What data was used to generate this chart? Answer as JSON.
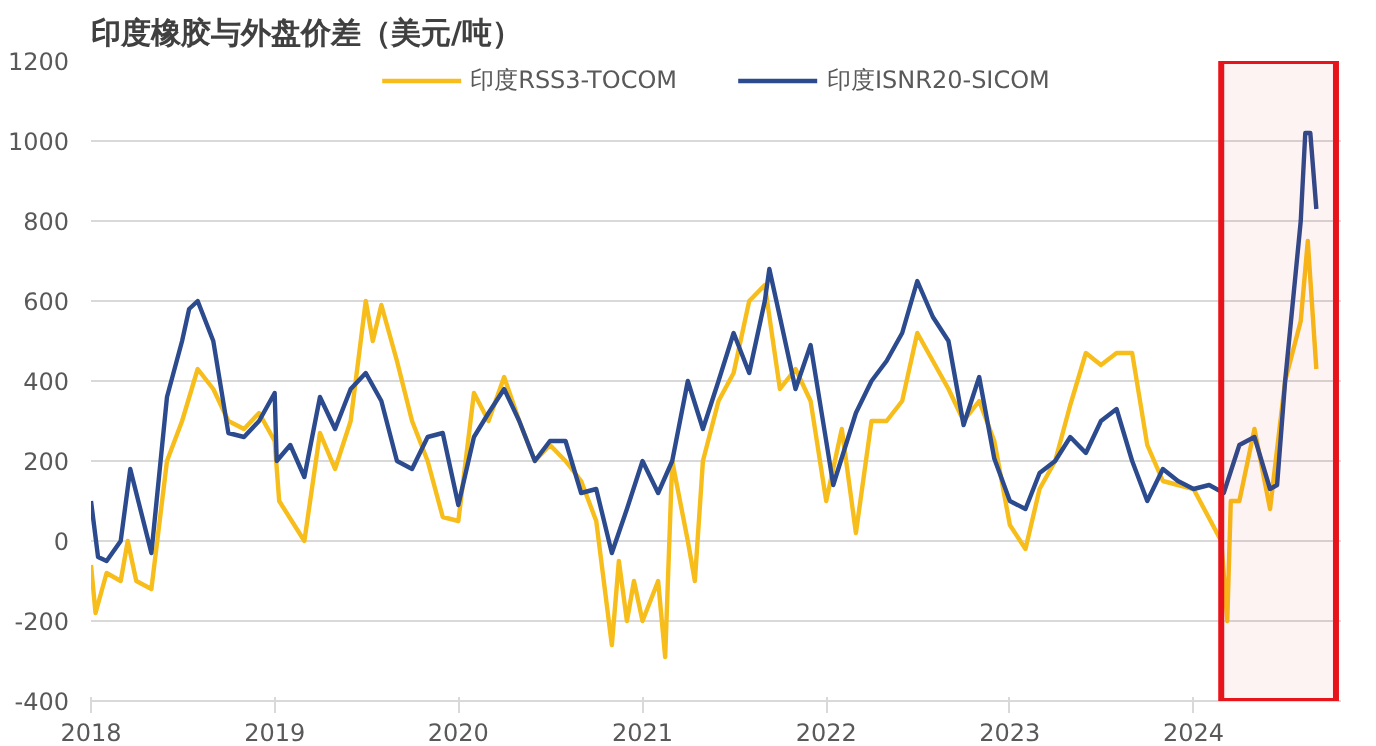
{
  "chart_data": {
    "type": "line",
    "title": "印度橡胶与外盘价差（美元/吨）",
    "xlim": [
      "2018-01-01",
      "2024-10-20"
    ],
    "xticks": [
      {
        "value": "2018-01-01",
        "label": "2018"
      },
      {
        "value": "2019-01-01",
        "label": "2019"
      },
      {
        "value": "2020-01-01",
        "label": "2020"
      },
      {
        "value": "2021-01-01",
        "label": "2021"
      },
      {
        "value": "2022-01-01",
        "label": "2022"
      },
      {
        "value": "2023-01-01",
        "label": "2023"
      },
      {
        "value": "2024-01-01",
        "label": "2024"
      }
    ],
    "ylim": [
      -400,
      1200
    ],
    "yticks": [
      -400,
      -200,
      0,
      200,
      400,
      600,
      800,
      1000,
      1200
    ],
    "grid": "y",
    "legend": "top",
    "line_style": "solid",
    "marker": "none",
    "bands": [
      {
        "axis": "x",
        "from": "2024-02-25",
        "to": "2024-10-10",
        "color": "#e8141c"
      }
    ],
    "series": [
      {
        "name": "印度RSS3-TOCOM",
        "color": "#f7bd1a",
        "x": [
          "2018-01-01",
          "2018-01-10",
          "2018-02-01",
          "2018-03-01",
          "2018-03-15",
          "2018-04-01",
          "2018-05-01",
          "2018-06-01",
          "2018-07-01",
          "2018-08-01",
          "2018-09-01",
          "2018-10-01",
          "2018-11-01",
          "2018-12-01",
          "2019-01-01",
          "2019-01-10",
          "2019-03-01",
          "2019-04-01",
          "2019-05-01",
          "2019-06-01",
          "2019-07-01",
          "2019-07-15",
          "2019-08-01",
          "2019-09-01",
          "2019-10-01",
          "2019-11-01",
          "2019-12-01",
          "2020-01-01",
          "2020-02-01",
          "2020-03-01",
          "2020-04-01",
          "2020-05-01",
          "2020-06-01",
          "2020-07-01",
          "2020-08-01",
          "2020-09-01",
          "2020-10-01",
          "2020-11-01",
          "2020-11-15",
          "2020-12-01",
          "2020-12-15",
          "2021-01-01",
          "2021-02-01",
          "2021-02-15",
          "2021-03-01",
          "2021-04-01",
          "2021-04-15",
          "2021-05-01",
          "2021-06-01",
          "2021-07-01",
          "2021-08-01",
          "2021-09-01",
          "2021-10-01",
          "2021-11-01",
          "2021-12-01",
          "2022-01-01",
          "2022-02-01",
          "2022-03-01",
          "2022-04-01",
          "2022-05-01",
          "2022-06-01",
          "2022-07-01",
          "2022-08-01",
          "2022-09-01",
          "2022-10-01",
          "2022-11-01",
          "2022-12-01",
          "2023-01-01",
          "2023-02-01",
          "2023-03-01",
          "2023-04-01",
          "2023-05-01",
          "2023-06-01",
          "2023-07-01",
          "2023-08-01",
          "2023-09-01",
          "2023-10-01",
          "2023-11-01",
          "2023-12-01",
          "2024-01-01",
          "2024-02-25",
          "2024-03-08",
          "2024-03-15",
          "2024-04-01",
          "2024-05-01",
          "2024-06-01",
          "2024-07-01",
          "2024-08-01",
          "2024-08-15",
          "2024-09-01"
        ],
        "values": [
          -60,
          -180,
          -80,
          -100,
          0,
          -100,
          -120,
          200,
          300,
          430,
          380,
          300,
          280,
          320,
          250,
          100,
          0,
          270,
          180,
          300,
          600,
          500,
          590,
          450,
          300,
          200,
          60,
          50,
          370,
          300,
          410,
          300,
          200,
          240,
          200,
          150,
          50,
          -260,
          -50,
          -200,
          -100,
          -200,
          -100,
          -290,
          200,
          0,
          -100,
          200,
          350,
          420,
          600,
          640,
          380,
          430,
          350,
          100,
          280,
          20,
          300,
          300,
          350,
          520,
          450,
          380,
          300,
          350,
          250,
          40,
          -20,
          130,
          200,
          340,
          470,
          440,
          470,
          470,
          240,
          150,
          140,
          130,
          0,
          -200,
          100,
          100,
          280,
          80,
          400,
          550,
          750,
          430
        ]
      },
      {
        "name": "印度ISNR20-SICOM",
        "color": "#2b4b8e",
        "x": [
          "2018-01-01",
          "2018-01-15",
          "2018-02-01",
          "2018-03-01",
          "2018-03-20",
          "2018-05-01",
          "2018-06-01",
          "2018-07-01",
          "2018-07-15",
          "2018-08-01",
          "2018-09-01",
          "2018-10-01",
          "2018-11-01",
          "2018-12-01",
          "2019-01-01",
          "2019-01-05",
          "2019-02-01",
          "2019-03-01",
          "2019-04-01",
          "2019-05-01",
          "2019-06-01",
          "2019-07-01",
          "2019-08-01",
          "2019-09-01",
          "2019-10-01",
          "2019-11-01",
          "2019-12-01",
          "2020-01-01",
          "2020-02-01",
          "2020-03-01",
          "2020-04-01",
          "2020-05-01",
          "2020-06-01",
          "2020-07-01",
          "2020-08-01",
          "2020-09-01",
          "2020-10-01",
          "2020-11-01",
          "2020-12-01",
          "2021-01-01",
          "2021-02-01",
          "2021-03-01",
          "2021-04-01",
          "2021-05-01",
          "2021-06-01",
          "2021-07-01",
          "2021-08-01",
          "2021-09-01",
          "2021-09-10",
          "2021-10-01",
          "2021-11-01",
          "2021-12-01",
          "2022-01-01",
          "2022-01-15",
          "2022-03-01",
          "2022-04-01",
          "2022-05-01",
          "2022-06-01",
          "2022-07-01",
          "2022-08-01",
          "2022-09-01",
          "2022-10-01",
          "2022-11-01",
          "2022-12-01",
          "2023-01-01",
          "2023-02-01",
          "2023-03-01",
          "2023-04-01",
          "2023-05-01",
          "2023-06-01",
          "2023-07-01",
          "2023-08-01",
          "2023-09-01",
          "2023-10-01",
          "2023-11-01",
          "2023-12-01",
          "2024-01-01",
          "2024-02-01",
          "2024-03-01",
          "2024-04-01",
          "2024-05-01",
          "2024-06-01",
          "2024-06-15",
          "2024-07-01",
          "2024-08-01",
          "2024-08-10",
          "2024-08-20",
          "2024-09-01"
        ],
        "values": [
          100,
          -40,
          -50,
          0,
          180,
          -30,
          360,
          500,
          580,
          600,
          500,
          270,
          260,
          300,
          370,
          200,
          240,
          160,
          360,
          280,
          380,
          420,
          350,
          200,
          180,
          260,
          270,
          90,
          260,
          320,
          380,
          300,
          200,
          250,
          250,
          120,
          130,
          -30,
          80,
          200,
          120,
          200,
          400,
          280,
          400,
          520,
          420,
          600,
          680,
          560,
          380,
          490,
          250,
          140,
          320,
          400,
          450,
          520,
          650,
          560,
          500,
          290,
          410,
          206,
          100,
          80,
          170,
          200,
          260,
          220,
          300,
          330,
          200,
          100,
          180,
          150,
          130,
          140,
          120,
          240,
          260,
          130,
          140,
          400,
          800,
          1020,
          1020,
          830
        ]
      }
    ]
  }
}
